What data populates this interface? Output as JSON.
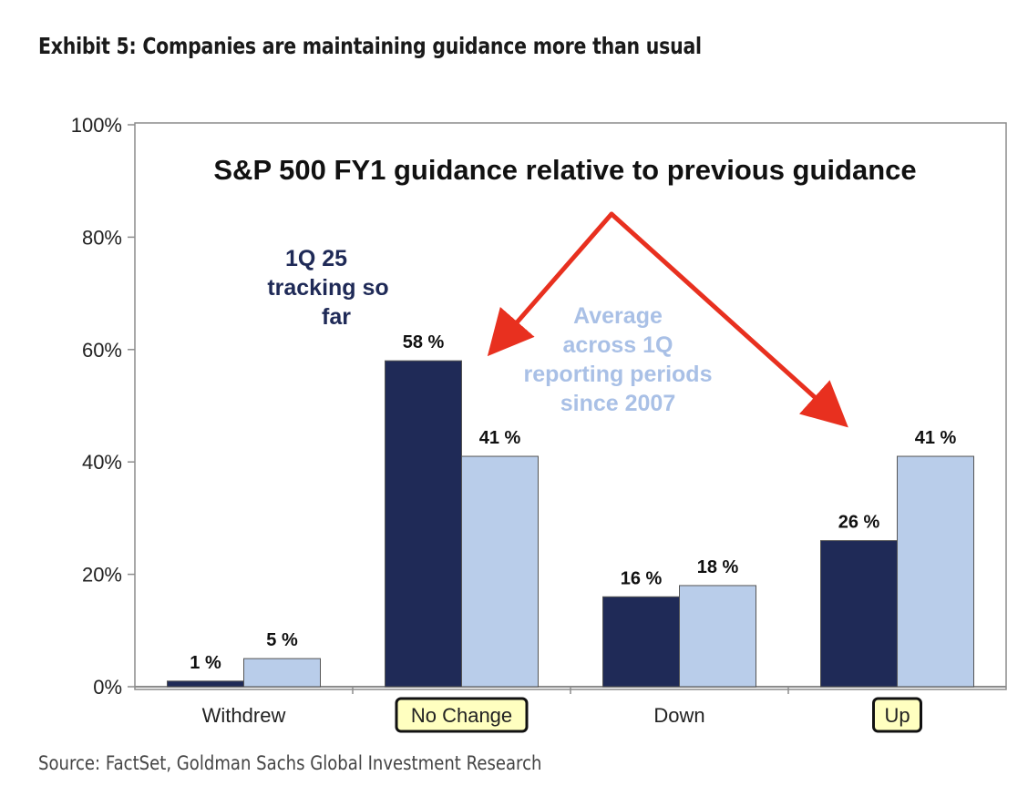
{
  "exhibit_title": "Exhibit 5: Companies are maintaining guidance more than usual",
  "source": "Source: FactSet, Goldman Sachs Global Investment Research",
  "chart_data": {
    "type": "bar",
    "title": "S&P 500 FY1 guidance relative to previous guidance",
    "categories": [
      "Withdrew",
      "No Change",
      "Down",
      "Up"
    ],
    "highlighted_categories": [
      "No Change",
      "Up"
    ],
    "series": [
      {
        "name": "1Q 25 tracking so far",
        "color": "#1f2a57",
        "values": [
          1,
          58,
          16,
          26
        ]
      },
      {
        "name": "Average across 1Q reporting periods since 2007",
        "color": "#b9cdea",
        "values": [
          5,
          41,
          18,
          41
        ]
      }
    ],
    "value_labels": [
      [
        "1 %",
        "58 %",
        "16 %",
        "26 %"
      ],
      [
        "5 %",
        "41 %",
        "18 %",
        "41 %"
      ]
    ],
    "ylim": [
      0,
      100
    ],
    "yticks": [
      "0%",
      "20%",
      "40%",
      "60%",
      "80%",
      "100%"
    ],
    "grid": false,
    "annotation_lines": {
      "tracking": [
        "1Q 25",
        "tracking so",
        "far"
      ],
      "average": [
        "Average",
        "across 1Q",
        "reporting periods",
        "since 2007"
      ]
    },
    "colors": {
      "arrow": "#e8301f",
      "highlight_fill": "#ffffc0",
      "tracking_text": "#1f2a57",
      "average_text": "#a9c0e6"
    }
  }
}
